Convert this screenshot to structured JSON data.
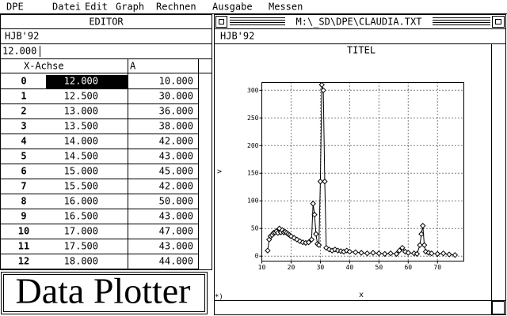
{
  "menu": [
    "DPE",
    "Datei",
    "Edit",
    "Graph",
    "Rechnen",
    "Ausgabe",
    "Messen"
  ],
  "editor": {
    "title": "EDITOR",
    "subtitle": "HJB'92",
    "input": "12.000",
    "columns": [
      "X-Achse",
      "A"
    ],
    "rows": [
      [
        "0",
        "12.000",
        "10.000"
      ],
      [
        "1",
        "12.500",
        "30.000"
      ],
      [
        "2",
        "13.000",
        "36.000"
      ],
      [
        "3",
        "13.500",
        "38.000"
      ],
      [
        "4",
        "14.000",
        "42.000"
      ],
      [
        "5",
        "14.500",
        "43.000"
      ],
      [
        "6",
        "15.000",
        "45.000"
      ],
      [
        "7",
        "15.500",
        "42.000"
      ],
      [
        "8",
        "16.000",
        "50.000"
      ],
      [
        "9",
        "16.500",
        "43.000"
      ],
      [
        "10",
        "17.000",
        "47.000"
      ],
      [
        "11",
        "17.500",
        "43.000"
      ],
      [
        "12",
        "18.000",
        "44.000"
      ]
    ]
  },
  "logo": "Data Plotter",
  "plot_window": {
    "title": "M:\\_SD\\DPE\\CLAUDIA.TXT",
    "subtitle": "HJB'92",
    "footer": "*)"
  },
  "chart_data": {
    "type": "line",
    "title": "TITEL",
    "x_label": "x",
    "y_label": ">",
    "color": "#000000",
    "grid": true,
    "markers": "diamond",
    "x": [
      12,
      12.5,
      13,
      13.5,
      14,
      14.5,
      15,
      15.5,
      16,
      16.5,
      17,
      17.5,
      18,
      18.5,
      19,
      19.5,
      20,
      21,
      22,
      23,
      24,
      25,
      26,
      27,
      27.5,
      28,
      28.5,
      29,
      29.5,
      30,
      30.5,
      31,
      31.5,
      32,
      33,
      34,
      35,
      36,
      37,
      38,
      39,
      40,
      42,
      44,
      46,
      48,
      50,
      52,
      54,
      56,
      57,
      58,
      59,
      60,
      62,
      63,
      64,
      64.5,
      65,
      65.5,
      66,
      67,
      68,
      70,
      72,
      74,
      76
    ],
    "values": [
      10,
      30,
      36,
      38,
      42,
      43,
      45,
      42,
      50,
      43,
      47,
      43,
      44,
      42,
      40,
      38,
      36,
      33,
      30,
      27,
      25,
      24,
      25,
      30,
      95,
      75,
      40,
      22,
      20,
      135,
      310,
      300,
      135,
      15,
      12,
      10,
      12,
      10,
      9,
      8,
      10,
      8,
      7,
      6,
      5,
      6,
      5,
      4,
      5,
      4,
      10,
      15,
      8,
      6,
      5,
      4,
      20,
      40,
      55,
      20,
      8,
      6,
      5,
      4,
      5,
      3,
      2
    ],
    "xlim": [
      10,
      79
    ],
    "ylim": [
      -9,
      314
    ],
    "xticks": [
      10,
      20,
      30,
      40,
      50,
      60,
      70
    ],
    "yticks": [
      0,
      50,
      100,
      150,
      200,
      250,
      300
    ]
  }
}
